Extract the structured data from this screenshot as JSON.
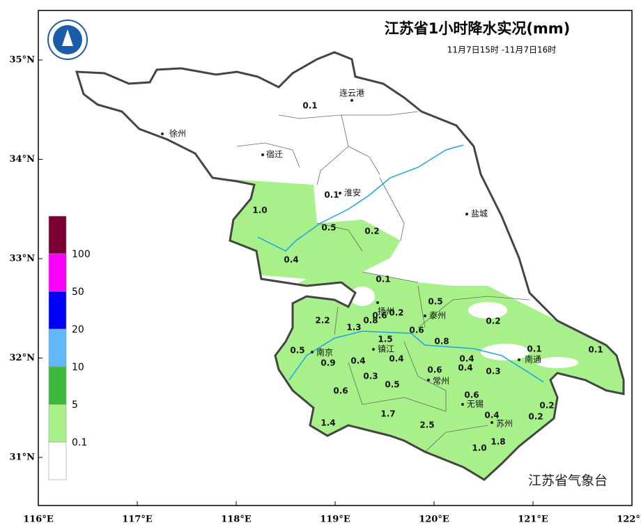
{
  "header": {
    "title": "江苏省1小时降水实况(mm)",
    "subtitle": "11月7日15时 -11月7日16时"
  },
  "axes": {
    "xticks": [
      {
        "value": 116,
        "label": "116°E"
      },
      {
        "value": 117,
        "label": "117°E"
      },
      {
        "value": 118,
        "label": "118°E"
      },
      {
        "value": 119,
        "label": "119°E"
      },
      {
        "value": 120,
        "label": "120°E"
      },
      {
        "value": 121,
        "label": "121°E"
      },
      {
        "value": 122,
        "label": "122°E"
      }
    ],
    "yticks": [
      {
        "value": 35,
        "label": "35°N"
      },
      {
        "value": 34,
        "label": "34°N"
      },
      {
        "value": 33,
        "label": "33°N"
      },
      {
        "value": 32,
        "label": "32°N"
      },
      {
        "value": 31,
        "label": "31°N"
      }
    ]
  },
  "legend": {
    "colors": [
      "#780032",
      "#fa00fa",
      "#0000fa",
      "#62b8fa",
      "#3cb93c",
      "#a8f08a",
      "#ffffff"
    ],
    "labels": [
      "100",
      "50",
      "20",
      "10",
      "5",
      "0.1"
    ]
  },
  "cities": [
    "连云港",
    "徐州",
    "宿迁",
    "淮安",
    "盐城",
    "扬州",
    "泰州",
    "南京",
    "镇江",
    "常州",
    "南通",
    "无锡",
    "苏州"
  ],
  "rain_labels": [
    "0.1",
    "0.1",
    "1.0",
    "0.5",
    "0.2",
    "0.4",
    "0.1",
    "0.5",
    "2.2",
    "0.6",
    "0.2",
    "0.8",
    "1.3",
    "0.6",
    "0.8",
    "0.2",
    "1.5",
    "0.5",
    "0.9",
    "0.4",
    "0.4",
    "0.4",
    "0.4",
    "0.1",
    "0.1",
    "0.3",
    "0.5",
    "0.6",
    "0.3",
    "0.6",
    "0.6",
    "1.7",
    "2.5",
    "1.4",
    "0.4",
    "0.2",
    "0.2",
    "1.8",
    "1.0"
  ],
  "footer": "江苏省气象台"
}
